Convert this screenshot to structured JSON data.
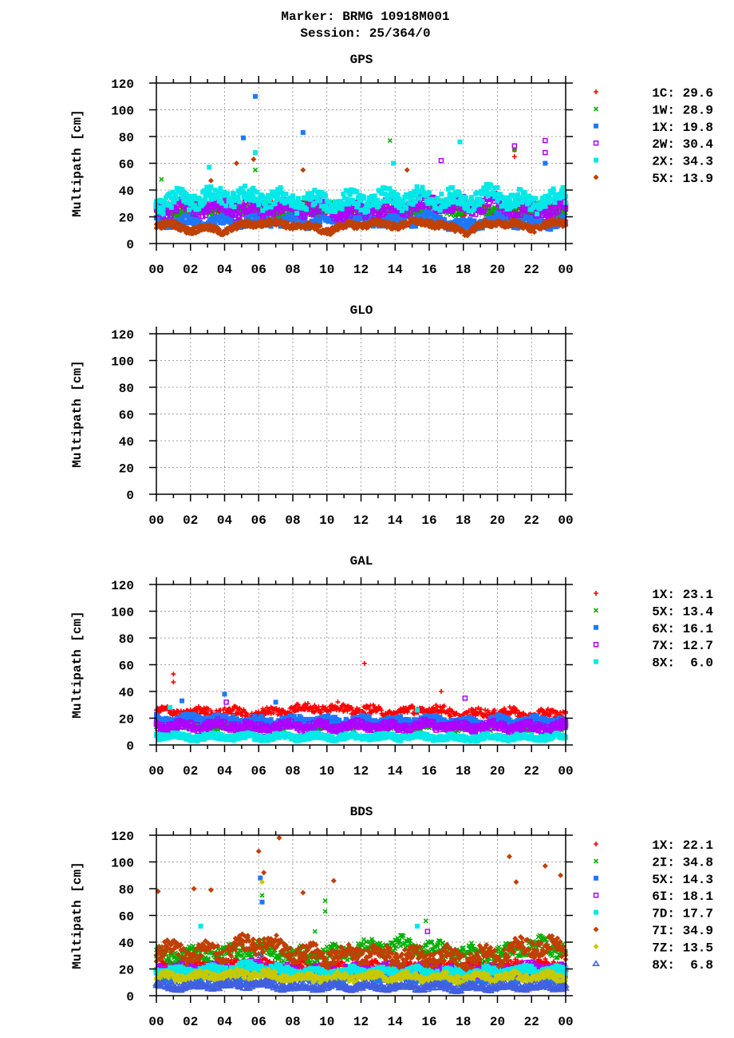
{
  "title": "Marker: BRMG 10918M001",
  "subtitle": "Session: 25/364/0",
  "chart_data": [
    {
      "type": "scatter",
      "title": "GPS",
      "ylabel": "Multipath [cm]",
      "xlabel": "",
      "ylim": [
        0,
        120
      ],
      "xlim": [
        0,
        24
      ],
      "x_unit": "hour of day",
      "yticks": [
        "0",
        "20",
        "40",
        "60",
        "80",
        "100",
        "120"
      ],
      "xticks": [
        "00",
        "02",
        "04",
        "06",
        "08",
        "10",
        "12",
        "14",
        "16",
        "18",
        "20",
        "22",
        "00"
      ],
      "grid": true,
      "legend_position": "right",
      "level_hours": [
        0,
        2,
        4,
        6,
        8,
        10,
        12,
        14,
        16,
        18,
        20,
        22,
        24
      ],
      "series": [
        {
          "name": "1C: 29.6",
          "marker": "plus",
          "color": "#ff0000",
          "levels": [
            25,
            26,
            27,
            26,
            25,
            26,
            24,
            25,
            27,
            26,
            25,
            25,
            25
          ],
          "spread": 8,
          "outliers": [
            [
              21,
              65
            ],
            [
              21,
              70
            ]
          ]
        },
        {
          "name": "1W: 28.9",
          "marker": "cross",
          "color": "#00b000",
          "levels": [
            25,
            26,
            27,
            26,
            25,
            26,
            24,
            25,
            27,
            26,
            25,
            25,
            25
          ],
          "spread": 8,
          "outliers": [
            [
              0.3,
              48
            ],
            [
              13.7,
              77
            ],
            [
              5.8,
              55
            ],
            [
              21,
              70
            ]
          ]
        },
        {
          "name": "1X: 19.8",
          "marker": "square",
          "color": "#1e78ff",
          "levels": [
            16,
            17,
            16,
            18,
            17,
            16,
            18,
            17,
            19,
            13,
            18,
            16,
            16
          ],
          "spread": 7,
          "outliers": [
            [
              5.8,
              110
            ],
            [
              5.1,
              79
            ],
            [
              8.6,
              83
            ],
            [
              22.8,
              60
            ]
          ]
        },
        {
          "name": "2W: 30.4",
          "marker": "open-square",
          "color": "#b000ff",
          "levels": [
            25,
            28,
            27,
            26,
            28,
            25,
            24,
            27,
            30,
            28,
            30,
            24,
            27
          ],
          "spread": 10,
          "outliers": [
            [
              21,
              73
            ],
            [
              22.8,
              77
            ],
            [
              22.8,
              68
            ],
            [
              16.7,
              62
            ]
          ]
        },
        {
          "name": "2X: 34.3",
          "marker": "square",
          "color": "#00e8e8",
          "levels": [
            30,
            33,
            36,
            34,
            32,
            31,
            32,
            33,
            34,
            33,
            36,
            30,
            35
          ],
          "spread": 12,
          "outliers": [
            [
              17.8,
              76
            ],
            [
              5.8,
              68
            ],
            [
              3.1,
              57
            ],
            [
              13.9,
              60
            ]
          ]
        },
        {
          "name": "5X: 13.9",
          "marker": "diamond",
          "color": "#c04000",
          "levels": [
            15,
            11,
            10,
            16,
            14,
            10,
            15,
            14,
            16,
            9,
            16,
            12,
            16
          ],
          "spread": 5,
          "outliers": [
            [
              5.7,
              63
            ],
            [
              4.7,
              60
            ],
            [
              8.6,
              55
            ],
            [
              14.7,
              55
            ],
            [
              3.2,
              47
            ]
          ]
        }
      ]
    },
    {
      "type": "scatter",
      "title": "GLO",
      "ylabel": "Multipath [cm]",
      "xlabel": "",
      "ylim": [
        0,
        120
      ],
      "xlim": [
        0,
        24
      ],
      "yticks": [
        "0",
        "20",
        "40",
        "60",
        "80",
        "100",
        "120"
      ],
      "xticks": [
        "00",
        "02",
        "04",
        "06",
        "08",
        "10",
        "12",
        "14",
        "16",
        "18",
        "20",
        "22",
        "00"
      ],
      "grid": true,
      "series": []
    },
    {
      "type": "scatter",
      "title": "GAL",
      "ylabel": "Multipath [cm]",
      "xlabel": "",
      "ylim": [
        0,
        120
      ],
      "xlim": [
        0,
        24
      ],
      "yticks": [
        "0",
        "20",
        "40",
        "60",
        "80",
        "100",
        "120"
      ],
      "xticks": [
        "00",
        "02",
        "04",
        "06",
        "08",
        "10",
        "12",
        "14",
        "16",
        "18",
        "20",
        "22",
        "00"
      ],
      "grid": true,
      "legend_position": "right",
      "level_hours": [
        0,
        2,
        4,
        6,
        8,
        10,
        12,
        14,
        16,
        18,
        20,
        22,
        24
      ],
      "series": [
        {
          "name": "1X: 23.1",
          "marker": "plus",
          "color": "#ff0000",
          "levels": [
            25,
            24,
            25,
            23,
            27,
            28,
            26,
            24,
            27,
            22,
            25,
            22,
            24
          ],
          "spread": 6,
          "outliers": [
            [
              1,
              53
            ],
            [
              1,
              47
            ],
            [
              12.2,
              61
            ],
            [
              16.7,
              40
            ]
          ]
        },
        {
          "name": "5X: 13.4",
          "marker": "cross",
          "color": "#00b000",
          "levels": [
            15,
            15,
            15,
            14,
            15,
            15,
            15,
            14,
            15,
            14,
            15,
            14,
            15
          ],
          "spread": 6,
          "outliers": []
        },
        {
          "name": "6X: 16.1",
          "marker": "square",
          "color": "#1e78ff",
          "levels": [
            18,
            19,
            19,
            17,
            18,
            18,
            18,
            17,
            19,
            16,
            18,
            17,
            18
          ],
          "spread": 6,
          "outliers": [
            [
              4,
              38
            ],
            [
              1.5,
              33
            ],
            [
              7,
              32
            ]
          ]
        },
        {
          "name": "7X: 12.7",
          "marker": "open-square",
          "color": "#b000ff",
          "levels": [
            14,
            14,
            15,
            13,
            14,
            14,
            14,
            13,
            15,
            13,
            14,
            13,
            14
          ],
          "spread": 6,
          "outliers": [
            [
              18.1,
              35
            ],
            [
              4.1,
              32
            ]
          ]
        },
        {
          "name": "8X: 6.0",
          "marker": "square",
          "color": "#00e8e8",
          "levels": [
            7,
            6,
            6,
            6,
            6,
            6,
            6,
            6,
            6,
            5,
            6,
            6,
            6
          ],
          "spread": 4,
          "outliers": [
            [
              0.8,
              28
            ],
            [
              15.3,
              26
            ]
          ]
        }
      ]
    },
    {
      "type": "scatter",
      "title": "BDS",
      "ylabel": "Multipath [cm]",
      "xlabel": "",
      "ylim": [
        0,
        120
      ],
      "xlim": [
        0,
        24
      ],
      "yticks": [
        "0",
        "20",
        "40",
        "60",
        "80",
        "100",
        "120"
      ],
      "xticks": [
        "00",
        "02",
        "04",
        "06",
        "08",
        "10",
        "12",
        "14",
        "16",
        "18",
        "20",
        "22",
        "00"
      ],
      "grid": true,
      "legend_position": "right",
      "level_hours": [
        0,
        2,
        4,
        6,
        8,
        10,
        12,
        14,
        16,
        18,
        20,
        22,
        24
      ],
      "series": [
        {
          "name": "1X: 22.1",
          "marker": "plus",
          "color": "#ff0000",
          "levels": [
            22,
            22,
            23,
            24,
            22,
            22,
            22,
            22,
            22,
            22,
            22,
            24,
            22
          ],
          "spread": 6,
          "outliers": []
        },
        {
          "name": "2I: 34.8",
          "marker": "cross",
          "color": "#00b000",
          "levels": [
            30,
            30,
            32,
            35,
            30,
            30,
            35,
            38,
            35,
            32,
            30,
            38,
            35
          ],
          "spread": 10,
          "outliers": [
            [
              9.9,
              71
            ],
            [
              9.9,
              63
            ],
            [
              6.2,
              75
            ],
            [
              15.8,
              56
            ],
            [
              9.3,
              48
            ]
          ]
        },
        {
          "name": "5X: 14.3",
          "marker": "square",
          "color": "#1e78ff",
          "levels": [
            15,
            15,
            15,
            17,
            14,
            14,
            15,
            15,
            15,
            14,
            14,
            15,
            15
          ],
          "spread": 6,
          "outliers": [
            [
              6.1,
              88
            ],
            [
              6.2,
              70
            ]
          ]
        },
        {
          "name": "6I: 18.1",
          "marker": "open-square",
          "color": "#b000ff",
          "levels": [
            20,
            20,
            21,
            22,
            18,
            19,
            20,
            20,
            20,
            19,
            19,
            21,
            20
          ],
          "spread": 6,
          "outliers": [
            [
              15.9,
              48
            ]
          ]
        },
        {
          "name": "7D: 17.7",
          "marker": "square",
          "color": "#00e8e8",
          "levels": [
            18,
            18,
            20,
            22,
            17,
            17,
            18,
            18,
            18,
            17,
            18,
            19,
            18
          ],
          "spread": 6,
          "outliers": [
            [
              2.6,
              52
            ],
            [
              15.3,
              52
            ]
          ]
        },
        {
          "name": "7I: 34.9",
          "marker": "diamond",
          "color": "#c04000",
          "levels": [
            35,
            32,
            33,
            40,
            32,
            30,
            32,
            30,
            30,
            28,
            30,
            38,
            35
          ],
          "spread": 12,
          "outliers": [
            [
              7.2,
              118
            ],
            [
              6,
              108
            ],
            [
              20.7,
              104
            ],
            [
              22.8,
              97
            ],
            [
              23.7,
              90
            ],
            [
              3.2,
              79
            ],
            [
              2.2,
              80
            ],
            [
              0.1,
              78
            ],
            [
              10.4,
              86
            ],
            [
              8.6,
              77
            ],
            [
              21.1,
              85
            ],
            [
              6.3,
              92
            ]
          ]
        },
        {
          "name": "7Z: 13.5",
          "marker": "diamond",
          "color": "#c8c800",
          "levels": [
            14,
            14,
            15,
            16,
            13,
            13,
            14,
            14,
            14,
            13,
            14,
            14,
            14
          ],
          "spread": 6,
          "outliers": [
            [
              6.2,
              85
            ]
          ]
        },
        {
          "name": "8X: 6.8",
          "marker": "triangle",
          "color": "#4060e0",
          "levels": [
            7,
            7,
            8,
            9,
            6,
            7,
            7,
            7,
            7,
            6,
            7,
            7,
            7
          ],
          "spread": 4,
          "outliers": [
            [
              6.1,
              30
            ]
          ]
        }
      ]
    }
  ]
}
